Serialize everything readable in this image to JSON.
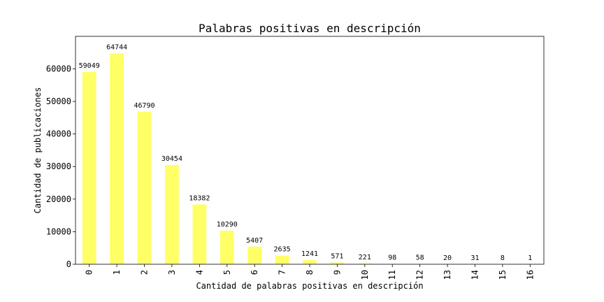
{
  "chart_data": {
    "type": "bar",
    "title": "Palabras positivas en descripción",
    "xlabel": "Cantidad de palabras positivas en descripción",
    "ylabel": "Cantidad de publicaciones",
    "categories": [
      "0",
      "1",
      "2",
      "3",
      "4",
      "5",
      "6",
      "7",
      "8",
      "9",
      "10",
      "11",
      "12",
      "13",
      "14",
      "15",
      "16"
    ],
    "values": [
      59049,
      64744,
      46790,
      30454,
      18382,
      10290,
      5407,
      2635,
      1241,
      571,
      221,
      98,
      58,
      20,
      31,
      8,
      1
    ],
    "yticks": [
      0,
      10000,
      20000,
      30000,
      40000,
      50000,
      60000
    ],
    "ylim": [
      0,
      69981
    ],
    "bar_color": "#ffff66",
    "grid": false,
    "legend": "none"
  }
}
